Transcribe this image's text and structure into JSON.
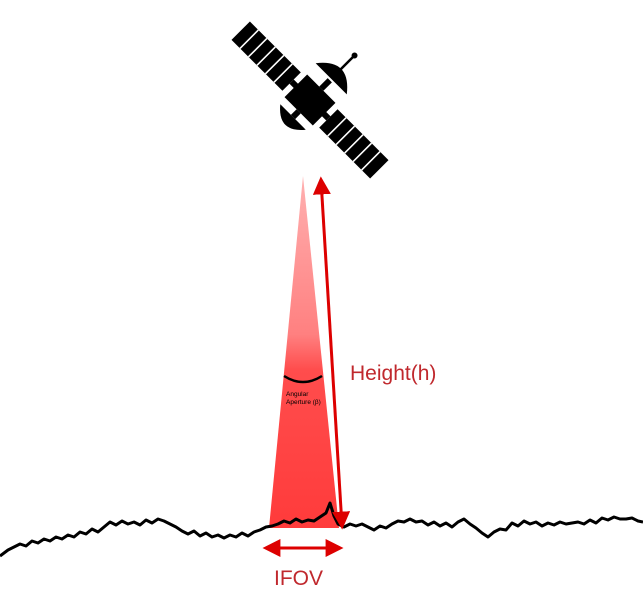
{
  "labels": {
    "height": "Height(h)",
    "ifov": "IFOV",
    "aperture_line1": "Angular",
    "aperture_line2": "Aperture (β)"
  },
  "colors": {
    "beam_top": "#ff8a8a",
    "beam_bottom": "#ff3b3b",
    "arrow": "#dd0000",
    "label": "#c0282d",
    "ink": "#000000"
  },
  "icons": [
    "satellite-icon"
  ]
}
